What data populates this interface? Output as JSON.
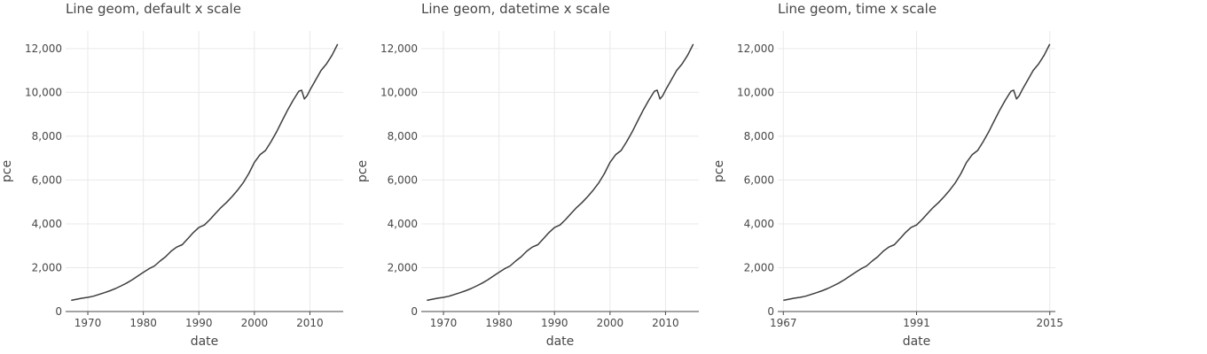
{
  "chart_data": [
    {
      "type": "line",
      "title": "Line geom, default x scale",
      "xlabel": "date",
      "ylabel": "pce",
      "x_scale": "default",
      "x_ticks": [
        1970,
        1980,
        1990,
        2000,
        2010
      ],
      "xlim": [
        1966,
        2016
      ],
      "ylim": [
        0,
        12800
      ],
      "y_ticks": [
        0,
        2000,
        4000,
        6000,
        8000,
        10000,
        12000
      ],
      "y_tick_labels": [
        "0",
        "2,000",
        "4,000",
        "6,000",
        "8,000",
        "10,000",
        "12,000"
      ],
      "grid": true,
      "series": [
        {
          "x": [
            1967,
            1968,
            1969,
            1970,
            1971,
            1972,
            1973,
            1974,
            1975,
            1976,
            1977,
            1978,
            1979,
            1980,
            1981,
            1982,
            1983,
            1984,
            1985,
            1986,
            1987,
            1988,
            1989,
            1990,
            1991,
            1992,
            1993,
            1994,
            1995,
            1996,
            1997,
            1998,
            1999,
            2000,
            2001,
            2002,
            2003,
            2004,
            2005,
            2006,
            2007,
            2008,
            2008.5,
            2009,
            2009.5,
            2010,
            2011,
            2012,
            2013,
            2014,
            2015
          ],
          "y": [
            507,
            560,
            610,
            645,
            700,
            780,
            860,
            950,
            1050,
            1170,
            1300,
            1450,
            1620,
            1790,
            1950,
            2080,
            2300,
            2500,
            2750,
            2940,
            3050,
            3320,
            3600,
            3830,
            3950,
            4200,
            4480,
            4750,
            4980,
            5250,
            5550,
            5880,
            6300,
            6800,
            7150,
            7350,
            7750,
            8200,
            8700,
            9200,
            9650,
            10050,
            10100,
            9700,
            9850,
            10100,
            10550,
            11000,
            11300,
            11700,
            12200
          ]
        }
      ]
    },
    {
      "type": "line",
      "title": "Line geom, datetime x scale",
      "xlabel": "date",
      "ylabel": "pce",
      "x_scale": "datetime",
      "x_ticks": [
        1970,
        1980,
        1990,
        2000,
        2010
      ],
      "xlim": [
        1966,
        2016
      ],
      "ylim": [
        0,
        12800
      ],
      "y_ticks": [
        0,
        2000,
        4000,
        6000,
        8000,
        10000,
        12000
      ],
      "y_tick_labels": [
        "0",
        "2,000",
        "4,000",
        "6,000",
        "8,000",
        "10,000",
        "12,000"
      ],
      "grid": true,
      "series": [
        {
          "x": [
            1967,
            1968,
            1969,
            1970,
            1971,
            1972,
            1973,
            1974,
            1975,
            1976,
            1977,
            1978,
            1979,
            1980,
            1981,
            1982,
            1983,
            1984,
            1985,
            1986,
            1987,
            1988,
            1989,
            1990,
            1991,
            1992,
            1993,
            1994,
            1995,
            1996,
            1997,
            1998,
            1999,
            2000,
            2001,
            2002,
            2003,
            2004,
            2005,
            2006,
            2007,
            2008,
            2008.5,
            2009,
            2009.5,
            2010,
            2011,
            2012,
            2013,
            2014,
            2015
          ],
          "y": [
            507,
            560,
            610,
            645,
            700,
            780,
            860,
            950,
            1050,
            1170,
            1300,
            1450,
            1620,
            1790,
            1950,
            2080,
            2300,
            2500,
            2750,
            2940,
            3050,
            3320,
            3600,
            3830,
            3950,
            4200,
            4480,
            4750,
            4980,
            5250,
            5550,
            5880,
            6300,
            6800,
            7150,
            7350,
            7750,
            8200,
            8700,
            9200,
            9650,
            10050,
            10100,
            9700,
            9850,
            10100,
            10550,
            11000,
            11300,
            11700,
            12200
          ]
        }
      ]
    },
    {
      "type": "line",
      "title": "Line geom, time x scale",
      "xlabel": "date",
      "ylabel": "pce",
      "x_scale": "time",
      "x_ticks": [
        1967,
        1991,
        2015
      ],
      "xlim": [
        1966,
        2016
      ],
      "ylim": [
        0,
        12800
      ],
      "y_ticks": [
        0,
        2000,
        4000,
        6000,
        8000,
        10000,
        12000
      ],
      "y_tick_labels": [
        "0",
        "2,000",
        "4,000",
        "6,000",
        "8,000",
        "10,000",
        "12,000"
      ],
      "grid": true,
      "series": [
        {
          "x": [
            1967,
            1968,
            1969,
            1970,
            1971,
            1972,
            1973,
            1974,
            1975,
            1976,
            1977,
            1978,
            1979,
            1980,
            1981,
            1982,
            1983,
            1984,
            1985,
            1986,
            1987,
            1988,
            1989,
            1990,
            1991,
            1992,
            1993,
            1994,
            1995,
            1996,
            1997,
            1998,
            1999,
            2000,
            2001,
            2002,
            2003,
            2004,
            2005,
            2006,
            2007,
            2008,
            2008.5,
            2009,
            2009.5,
            2010,
            2011,
            2012,
            2013,
            2014,
            2015
          ],
          "y": [
            507,
            560,
            610,
            645,
            700,
            780,
            860,
            950,
            1050,
            1170,
            1300,
            1450,
            1620,
            1790,
            1950,
            2080,
            2300,
            2500,
            2750,
            2940,
            3050,
            3320,
            3600,
            3830,
            3950,
            4200,
            4480,
            4750,
            4980,
            5250,
            5550,
            5880,
            6300,
            6800,
            7150,
            7350,
            7750,
            8200,
            8700,
            9200,
            9650,
            10050,
            10100,
            9700,
            9850,
            10100,
            10550,
            11000,
            11300,
            11700,
            12200
          ]
        }
      ]
    }
  ]
}
